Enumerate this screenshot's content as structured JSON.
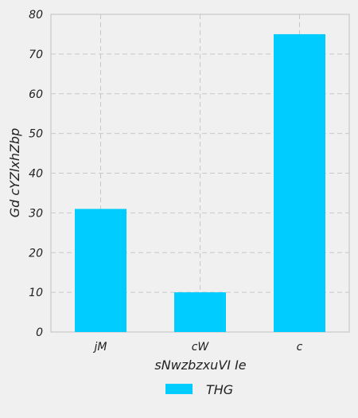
{
  "chart_data": {
    "type": "bar",
    "categories": [
      "jM",
      "cW",
      "c"
    ],
    "series": [
      {
        "name": "THG",
        "values": [
          31,
          10,
          75
        ],
        "color": "#00ccff"
      }
    ],
    "xlabel": "sNwzbzxuVI Ie",
    "ylabel": "Gd cYZlxhZbp",
    "ylim": [
      0,
      80
    ],
    "yticks": [
      0,
      10,
      20,
      30,
      40,
      50,
      60,
      70,
      80
    ],
    "grid": true,
    "legend_position": "bottom-center"
  }
}
